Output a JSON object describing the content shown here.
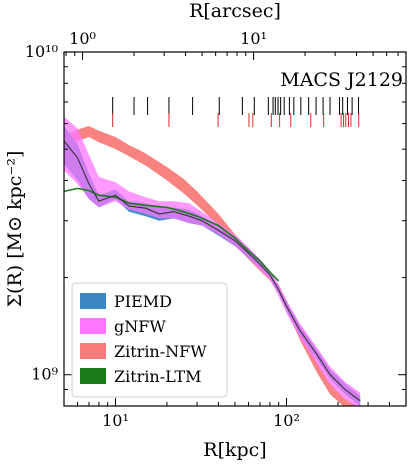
{
  "chart_data": {
    "type": "area",
    "title": "",
    "annotation": "MACS J2129",
    "xlabel": "R[kpc]",
    "ylabel": "Σ(R) [M⊙ kpc⁻²]",
    "top_xlabel": "R[arcsec]",
    "xscale": "log",
    "yscale": "log",
    "xlim": [
      5,
      500
    ],
    "ylim": [
      800000000.0,
      10000000000.0
    ],
    "grid": false,
    "legend_position": "lower-left",
    "x_ticks": [
      {
        "value": 10,
        "label": "10¹"
      },
      {
        "value": 100,
        "label": "10²"
      }
    ],
    "y_ticks": [
      {
        "value": 1000000000.0,
        "label": "10⁹"
      },
      {
        "value": 10000000000.0,
        "label": "10¹⁰"
      }
    ],
    "top_ticks": [
      {
        "value": 1,
        "label": "10⁰"
      },
      {
        "value": 10,
        "label": "10¹"
      }
    ],
    "kpc_per_arcsec": 6.42,
    "series": [
      {
        "name": "PIEMD",
        "kind": "band",
        "color": "#3a87c4",
        "x": [
          5,
          6,
          7,
          8,
          10,
          12,
          15,
          18,
          22,
          27,
          32,
          40,
          50,
          60,
          70,
          80,
          90,
          100,
          120,
          150,
          180,
          220,
          270
        ],
        "lower": [
          4500000000.0,
          4000000000.0,
          3500000000.0,
          3300000000.0,
          3500000000.0,
          3200000000.0,
          3100000000.0,
          3000000000.0,
          3050000000.0,
          2950000000.0,
          2900000000.0,
          2700000000.0,
          2500000000.0,
          2300000000.0,
          2150000000.0,
          2000000000.0,
          1780000000.0,
          1580000000.0,
          1330000000.0,
          1120000000.0,
          970000000.0,
          870000000.0,
          800000000.0
        ],
        "upper": [
          5900000000.0,
          5200000000.0,
          4200000000.0,
          3600000000.0,
          3750000000.0,
          3450000000.0,
          3400000000.0,
          3300000000.0,
          3300000000.0,
          3250000000.0,
          3100000000.0,
          2900000000.0,
          2680000000.0,
          2460000000.0,
          2280000000.0,
          2100000000.0,
          1880000000.0,
          1680000000.0,
          1420000000.0,
          1200000000.0,
          1040000000.0,
          940000000.0,
          860000000.0
        ]
      },
      {
        "name": "gNFW",
        "kind": "band",
        "color": "#ff77ff",
        "x": [
          5,
          6,
          7,
          8,
          10,
          12,
          15,
          18,
          22,
          27,
          32,
          40,
          50,
          60,
          70,
          80,
          90,
          100,
          120,
          150,
          180,
          220,
          270
        ],
        "lower": [
          4300000000.0,
          3900000000.0,
          3500000000.0,
          3300000000.0,
          3450000000.0,
          3250000000.0,
          3150000000.0,
          3050000000.0,
          3050000000.0,
          2950000000.0,
          2900000000.0,
          2720000000.0,
          2500000000.0,
          2300000000.0,
          2120000000.0,
          1970000000.0,
          1750000000.0,
          1550000000.0,
          1300000000.0,
          1080000000.0,
          930000000.0,
          840000000.0,
          780000000.0
        ],
        "upper": [
          6300000000.0,
          5800000000.0,
          4800000000.0,
          4100000000.0,
          3950000000.0,
          3700000000.0,
          3550000000.0,
          3450000000.0,
          3450000000.0,
          3400000000.0,
          3200000000.0,
          2950000000.0,
          2720000000.0,
          2480000000.0,
          2280000000.0,
          2100000000.0,
          1900000000.0,
          1700000000.0,
          1440000000.0,
          1220000000.0,
          1060000000.0,
          950000000.0,
          880000000.0
        ]
      },
      {
        "name": "Zitrin-NFW",
        "kind": "band",
        "color": "#f77b78",
        "x": [
          5,
          6,
          7,
          8,
          10,
          12,
          15,
          20,
          25,
          30,
          40,
          50,
          60,
          70,
          80,
          90,
          100,
          120,
          150,
          180,
          220,
          260
        ],
        "lower": [
          5100000000.0,
          5300000000.0,
          5450000000.0,
          5250000000.0,
          5000000000.0,
          4750000000.0,
          4450000000.0,
          4000000000.0,
          3650000000.0,
          3350000000.0,
          2900000000.0,
          2520000000.0,
          2280000000.0,
          2100000000.0,
          1960000000.0,
          1800000000.0,
          1600000000.0,
          1280000000.0,
          1020000000.0,
          870000000.0,
          790000000.0,
          760000000.0
        ],
        "upper": [
          5500000000.0,
          5750000000.0,
          5900000000.0,
          5700000000.0,
          5450000000.0,
          5150000000.0,
          4850000000.0,
          4400000000.0,
          4050000000.0,
          3700000000.0,
          3150000000.0,
          2720000000.0,
          2420000000.0,
          2220000000.0,
          2060000000.0,
          1900000000.0,
          1700000000.0,
          1380000000.0,
          1100000000.0,
          940000000.0,
          840000000.0,
          800000000.0
        ]
      },
      {
        "name": "Zitrin-LTM",
        "kind": "line",
        "color": "#1a7a1a",
        "x": [
          5,
          6,
          7,
          8,
          10,
          12,
          15,
          20,
          25,
          30,
          40,
          50,
          60,
          70,
          80,
          90
        ],
        "y": [
          3700000000.0,
          3780000000.0,
          3720000000.0,
          3600000000.0,
          3550000000.0,
          3400000000.0,
          3350000000.0,
          3300000000.0,
          3200000000.0,
          3100000000.0,
          2900000000.0,
          2650000000.0,
          2420000000.0,
          2250000000.0,
          2080000000.0,
          1950000000.0
        ]
      }
    ],
    "median_line": {
      "name": "",
      "color": "#333333",
      "x": [
        5,
        6,
        7,
        8,
        10,
        12,
        15,
        18,
        22,
        27,
        32,
        40,
        50,
        60,
        70,
        80,
        90,
        100,
        120,
        150,
        180,
        220,
        270
      ],
      "y": [
        5300000000.0,
        4700000000.0,
        3900000000.0,
        3450000000.0,
        3600000000.0,
        3330000000.0,
        3280000000.0,
        3150000000.0,
        3200000000.0,
        3100000000.0,
        3000000000.0,
        2800000000.0,
        2600000000.0,
        2380000000.0,
        2200000000.0,
        2040000000.0,
        1830000000.0,
        1630000000.0,
        1370000000.0,
        1160000000.0,
        1000000000.0,
        900000000.0,
        830000000.0
      ]
    },
    "image_ticks_black_arcsec": [
      1.5,
      2.0,
      2.4,
      3.2,
      4.4,
      6.3,
      8.6,
      10.1,
      12.2,
      13.0,
      13.4,
      13.9,
      14.4,
      15.1,
      16.2,
      17.2,
      18.9,
      21.0,
      23.2,
      25.5,
      28.0,
      31.8,
      33.2,
      35.4,
      37.7,
      41.1
    ],
    "image_ticks_red_arcsec": [
      1.5,
      3.2,
      6.2,
      9.4,
      9.9,
      12.7,
      14.2,
      16.5,
      21.6,
      25.7,
      32.5,
      33.6,
      34.6,
      35.9,
      37.1,
      41.2
    ]
  },
  "legend": {
    "items": [
      {
        "label": "PIEMD",
        "color": "#3a87c4"
      },
      {
        "label": "gNFW",
        "color": "#ff77ff"
      },
      {
        "label": "Zitrin-NFW",
        "color": "#f77b78"
      },
      {
        "label": "Zitrin-LTM",
        "color": "#1a7a1a"
      }
    ]
  }
}
